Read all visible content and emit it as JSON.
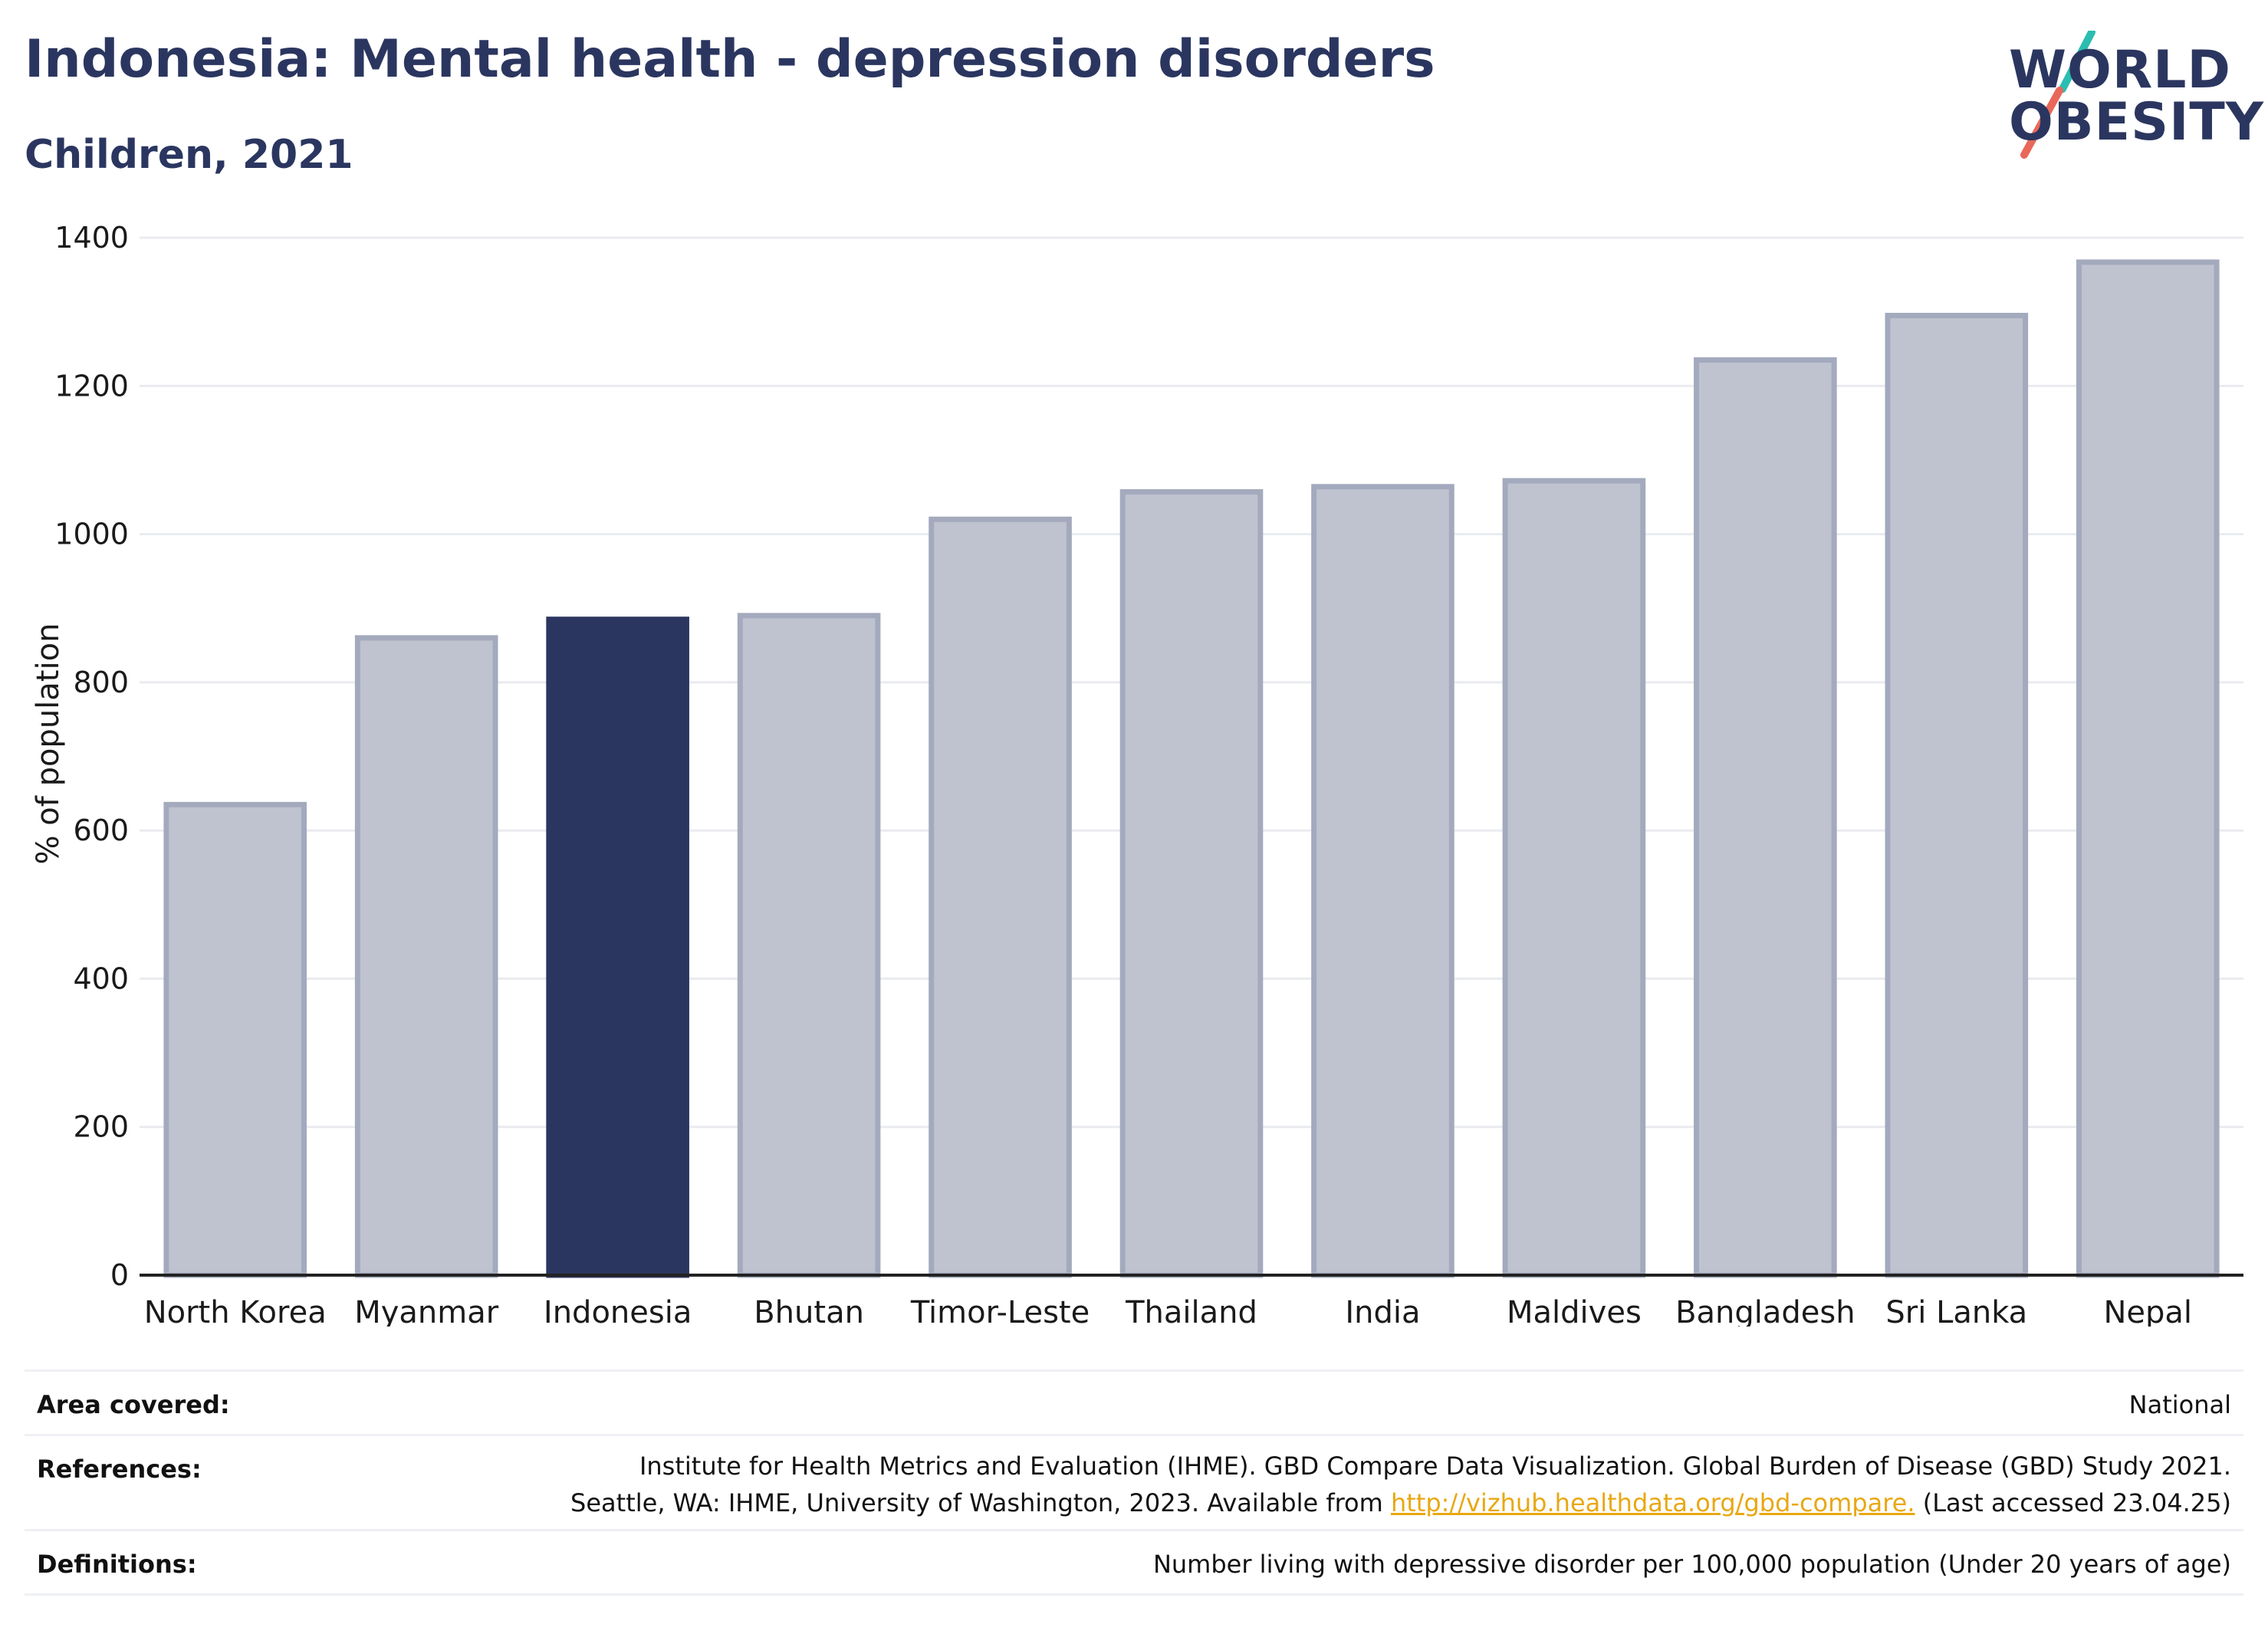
{
  "header": {
    "title": "Indonesia: Mental health - depression disorders",
    "subtitle": "Children, 2021"
  },
  "logo": {
    "line1": "WORLD",
    "line2": "OBESITY",
    "slash_colors": [
      "#2bbdb1",
      "#e8685a"
    ]
  },
  "chart_data": {
    "type": "bar",
    "ylabel": "% of population",
    "xlabel": "",
    "ylim": [
      0,
      1400
    ],
    "yticks": [
      0,
      200,
      400,
      600,
      800,
      1000,
      1200,
      1400
    ],
    "grid": true,
    "categories": [
      "North Korea",
      "Myanmar",
      "Indonesia",
      "Bhutan",
      "Timor-Leste",
      "Thailand",
      "India",
      "Maldives",
      "Bangladesh",
      "Sri Lanka",
      "Nepal"
    ],
    "values": [
      635,
      860,
      885,
      890,
      1020,
      1057,
      1064,
      1072,
      1235,
      1295,
      1367
    ],
    "highlight": "Indonesia",
    "colors": {
      "highlight": "#2b3660",
      "bar_fill": "#bfc3cf",
      "bar_edge": "#a4aabd",
      "grid": "#e9ebef",
      "axis": "#222222"
    }
  },
  "meta": {
    "area": {
      "label": "Area covered:",
      "value": "National"
    },
    "references": {
      "label": "References:",
      "line1": "Institute for Health Metrics and Evaluation (IHME). GBD Compare Data Visualization. Global Burden of Disease (GBD) Study 2021.",
      "line2_pre": "Seattle, WA: IHME, University of Washington, 2023. Available from ",
      "link": "http://vizhub.healthdata.org/gbd-compare.",
      "line2_post": " (Last accessed 23.04.25)"
    },
    "definitions": {
      "label": "Definitions:",
      "value": "Number living with depressive disorder per 100,000 population (Under 20 years of age)"
    }
  }
}
